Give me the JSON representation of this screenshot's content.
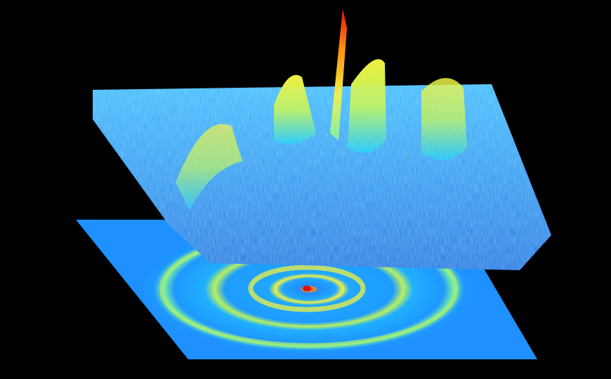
{
  "scene": {
    "description_free": true,
    "background_color": "#000000",
    "palette": {
      "low": "#1e8cff",
      "mid_low": "#20c8ff",
      "mid": "#7cf0a0",
      "mid_high": "#f0f040",
      "high": "#ff8c10",
      "peak": "#e01010"
    },
    "colormap": "jet",
    "elements": {
      "surface_plot": "3d-surface",
      "projection_plane": "2d-heatmap-projection"
    }
  }
}
